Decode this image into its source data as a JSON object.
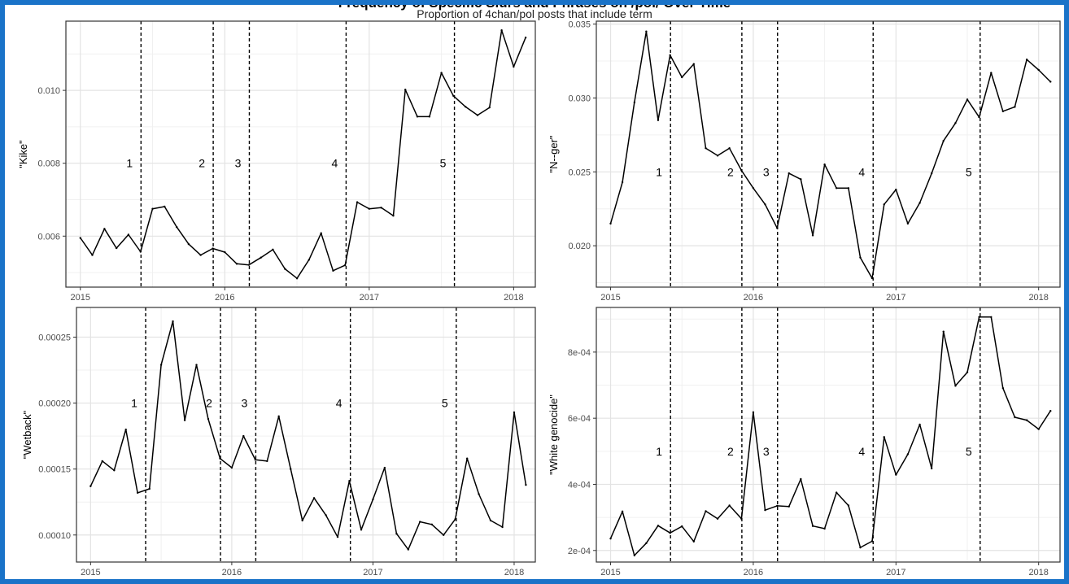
{
  "figure": {
    "title": "Frequency of Specific Slurs and Phrases on /pol/ Over Time",
    "subtitle": "Proportion of 4chan/pol posts that include term"
  },
  "chart_data": [
    {
      "type": "line",
      "ylabel": "\"Kike\"",
      "x_ticks": [
        "2015",
        "2016",
        "2017",
        "2018"
      ],
      "x_tick_values": [
        2015,
        2016,
        2017,
        2018
      ],
      "xlim": [
        2014.9,
        2018.15
      ],
      "y_ticks": [
        "0.006",
        "0.008",
        "0.010"
      ],
      "y_tick_values": [
        0.006,
        0.008,
        0.01
      ],
      "ylim": [
        0.0046,
        0.0119
      ],
      "grid": true,
      "events": [
        {
          "label": "1",
          "x": 2015.42
        },
        {
          "label": "2",
          "x": 2015.92
        },
        {
          "label": "3",
          "x": 2016.17
        },
        {
          "label": "4",
          "x": 2016.84
        },
        {
          "label": "5",
          "x": 2017.59
        }
      ],
      "event_label_y": 0.008,
      "x": [
        2015.0,
        2015.083,
        2015.167,
        2015.25,
        2015.333,
        2015.417,
        2015.5,
        2015.583,
        2015.667,
        2015.75,
        2015.833,
        2015.917,
        2016.0,
        2016.083,
        2016.167,
        2016.25,
        2016.333,
        2016.417,
        2016.5,
        2016.583,
        2016.667,
        2016.75,
        2016.833,
        2016.917,
        2017.0,
        2017.083,
        2017.167,
        2017.25,
        2017.333,
        2017.417,
        2017.5,
        2017.583,
        2017.667,
        2017.75,
        2017.833,
        2017.917,
        2018.0,
        2018.083
      ],
      "values": [
        0.00595,
        0.00548,
        0.0062,
        0.00567,
        0.00604,
        0.00557,
        0.00675,
        0.00681,
        0.00625,
        0.00578,
        0.00548,
        0.00566,
        0.00556,
        0.00524,
        0.00521,
        0.00541,
        0.00563,
        0.0051,
        0.00484,
        0.00535,
        0.00608,
        0.00505,
        0.0052,
        0.00693,
        0.00675,
        0.00678,
        0.00656,
        0.01002,
        0.00928,
        0.00928,
        0.01048,
        0.00985,
        0.00955,
        0.00932,
        0.00953,
        0.01165,
        0.01065,
        0.01145
      ]
    },
    {
      "type": "line",
      "ylabel": "\"N--ger\"",
      "x_ticks": [
        "2015",
        "2016",
        "2017",
        "2018"
      ],
      "x_tick_values": [
        2015,
        2016,
        2017,
        2018
      ],
      "xlim": [
        2014.9,
        2018.15
      ],
      "y_ticks": [
        "0.020",
        "0.025",
        "0.030",
        "0.035"
      ],
      "y_tick_values": [
        0.02,
        0.025,
        0.03,
        0.035
      ],
      "ylim": [
        0.0172,
        0.0352
      ],
      "grid": true,
      "events": [
        {
          "label": "1",
          "x": 2015.42
        },
        {
          "label": "2",
          "x": 2015.92
        },
        {
          "label": "3",
          "x": 2016.17
        },
        {
          "label": "4",
          "x": 2016.84
        },
        {
          "label": "5",
          "x": 2017.59
        }
      ],
      "event_label_y": 0.025,
      "x": [
        2015.0,
        2015.083,
        2015.167,
        2015.25,
        2015.333,
        2015.417,
        2015.5,
        2015.583,
        2015.667,
        2015.75,
        2015.833,
        2015.917,
        2016.0,
        2016.083,
        2016.167,
        2016.25,
        2016.333,
        2016.417,
        2016.5,
        2016.583,
        2016.667,
        2016.75,
        2016.833,
        2016.917,
        2017.0,
        2017.083,
        2017.167,
        2017.25,
        2017.333,
        2017.417,
        2017.5,
        2017.583,
        2017.667,
        2017.75,
        2017.833,
        2017.917,
        2018.0,
        2018.083
      ],
      "values": [
        0.0215,
        0.0243,
        0.0297,
        0.0345,
        0.0285,
        0.0329,
        0.0314,
        0.0323,
        0.0266,
        0.0261,
        0.0266,
        0.0251,
        0.0239,
        0.0228,
        0.0212,
        0.0249,
        0.0245,
        0.0207,
        0.0255,
        0.0239,
        0.0239,
        0.0192,
        0.0178,
        0.0228,
        0.0238,
        0.0215,
        0.0229,
        0.0249,
        0.0271,
        0.0283,
        0.0299,
        0.0287,
        0.0317,
        0.0291,
        0.0294,
        0.0326,
        0.0319,
        0.0311
      ]
    },
    {
      "type": "line",
      "ylabel": "\"Wetback\"",
      "x_ticks": [
        "2015",
        "2016",
        "2017",
        "2018"
      ],
      "x_tick_values": [
        2015,
        2016,
        2017,
        2018
      ],
      "xlim": [
        2014.9,
        2018.15
      ],
      "y_ticks": [
        "0.00010",
        "0.00015",
        "0.00020",
        "0.00025"
      ],
      "y_tick_values": [
        0.0001,
        0.00015,
        0.0002,
        0.00025
      ],
      "ylim": [
        7.95e-05,
        0.0002725
      ],
      "grid": true,
      "events": [
        {
          "label": "1",
          "x": 2015.39
        },
        {
          "label": "2",
          "x": 2015.92
        },
        {
          "label": "3",
          "x": 2016.17
        },
        {
          "label": "4",
          "x": 2016.84
        },
        {
          "label": "5",
          "x": 2017.59
        }
      ],
      "event_label_y": 0.0002,
      "x": [
        2015.0,
        2015.083,
        2015.167,
        2015.25,
        2015.333,
        2015.417,
        2015.5,
        2015.583,
        2015.667,
        2015.75,
        2015.833,
        2015.917,
        2016.0,
        2016.083,
        2016.167,
        2016.25,
        2016.333,
        2016.417,
        2016.5,
        2016.583,
        2016.667,
        2016.75,
        2016.833,
        2016.917,
        2017.0,
        2017.083,
        2017.167,
        2017.25,
        2017.333,
        2017.417,
        2017.5,
        2017.583,
        2017.667,
        2017.75,
        2017.833,
        2017.917,
        2018.0,
        2018.083
      ],
      "values": [
        0.000137,
        0.000156,
        0.000149,
        0.00018,
        0.000132,
        0.000135,
        0.000229,
        0.000262,
        0.000187,
        0.000229,
        0.000188,
        0.000158,
        0.000151,
        0.000175,
        0.000157,
        0.000156,
        0.00019,
        0.00015,
        0.000111,
        0.000128,
        0.000115,
        9.85e-05,
        0.000141,
        0.000104,
        0.000127,
        0.000151,
        0.000101,
        8.9e-05,
        0.00011,
        0.000108,
        0.0001,
        0.000112,
        0.000158,
        0.000131,
        0.000111,
        0.000106,
        0.000193,
        0.000138
      ]
    },
    {
      "type": "line",
      "ylabel": "\"White genocide\"",
      "x_ticks": [
        "2015",
        "2016",
        "2017",
        "2018"
      ],
      "x_tick_values": [
        2015,
        2016,
        2017,
        2018
      ],
      "xlim": [
        2014.9,
        2018.15
      ],
      "y_ticks": [
        "2e-04",
        "4e-04",
        "6e-04",
        "8e-04"
      ],
      "y_tick_values": [
        0.0002,
        0.0004,
        0.0006,
        0.0008
      ],
      "ylim": [
        0.000165,
        0.000935
      ],
      "grid": true,
      "events": [
        {
          "label": "1",
          "x": 2015.42
        },
        {
          "label": "2",
          "x": 2015.92
        },
        {
          "label": "3",
          "x": 2016.17
        },
        {
          "label": "4",
          "x": 2016.84
        },
        {
          "label": "5",
          "x": 2017.59
        }
      ],
      "event_label_y": 0.0005,
      "x": [
        2015.0,
        2015.083,
        2015.167,
        2015.25,
        2015.333,
        2015.417,
        2015.5,
        2015.583,
        2015.667,
        2015.75,
        2015.833,
        2015.917,
        2016.0,
        2016.083,
        2016.167,
        2016.25,
        2016.333,
        2016.417,
        2016.5,
        2016.583,
        2016.667,
        2016.75,
        2016.833,
        2016.917,
        2017.0,
        2017.083,
        2017.167,
        2017.25,
        2017.333,
        2017.417,
        2017.5,
        2017.583,
        2017.667,
        2017.75,
        2017.833,
        2017.917,
        2018.0,
        2018.083
      ],
      "values": [
        0.000236,
        0.000318,
        0.000185,
        0.000222,
        0.000275,
        0.000253,
        0.000273,
        0.000227,
        0.000319,
        0.000296,
        0.000336,
        0.000296,
        0.000618,
        0.000322,
        0.000335,
        0.000333,
        0.000416,
        0.000274,
        0.000266,
        0.000375,
        0.000336,
        0.000209,
        0.000228,
        0.000543,
        0.000429,
        0.000491,
        0.000581,
        0.000448,
        0.000862,
        0.000698,
        0.000739,
        0.000906,
        0.000906,
        0.000691,
        0.000603,
        0.000594,
        0.000567,
        0.000622
      ]
    }
  ]
}
